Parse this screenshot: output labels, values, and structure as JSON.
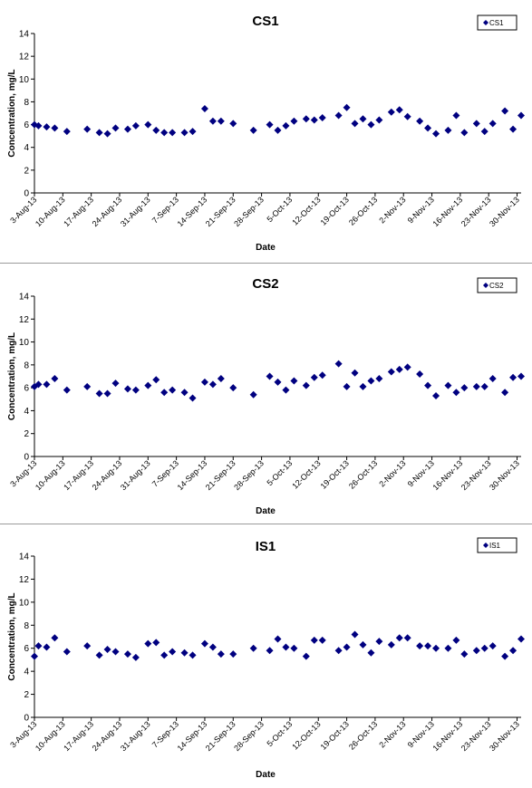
{
  "chart_data": [
    {
      "type": "scatter",
      "title": "CS1",
      "xlabel": "Date",
      "ylabel": "Concentration, mg/L",
      "ylim": [
        0,
        14
      ],
      "yticks": [
        "0",
        "2",
        "4",
        "6",
        "8",
        "10",
        "12",
        "14"
      ],
      "x_tick_labels": [
        "3-Aug-13",
        "10-Aug-13",
        "17-Aug-13",
        "24-Aug-13",
        "31-Aug-13",
        "7-Sep-13",
        "14-Sep-13",
        "21-Sep-13",
        "28-Sep-13",
        "5-Oct-13",
        "12-Oct-13",
        "19-Oct-13",
        "26-Oct-13",
        "2-Nov-13",
        "9-Nov-13",
        "16-Nov-13",
        "23-Nov-13",
        "30-Nov-13"
      ],
      "grid": false,
      "legend_position": "top-right",
      "marker_color": "#000080",
      "series": [
        {
          "name": "CS1",
          "points": [
            {
              "x": "2013-08-03",
              "y": 6.0
            },
            {
              "x": "2013-08-04",
              "y": 5.9
            },
            {
              "x": "2013-08-06",
              "y": 5.8
            },
            {
              "x": "2013-08-08",
              "y": 5.7
            },
            {
              "x": "2013-08-11",
              "y": 5.4
            },
            {
              "x": "2013-08-16",
              "y": 5.6
            },
            {
              "x": "2013-08-19",
              "y": 5.3
            },
            {
              "x": "2013-08-21",
              "y": 5.2
            },
            {
              "x": "2013-08-23",
              "y": 5.7
            },
            {
              "x": "2013-08-26",
              "y": 5.6
            },
            {
              "x": "2013-08-28",
              "y": 5.9
            },
            {
              "x": "2013-08-31",
              "y": 6.0
            },
            {
              "x": "2013-09-02",
              "y": 5.5
            },
            {
              "x": "2013-09-04",
              "y": 5.3
            },
            {
              "x": "2013-09-06",
              "y": 5.3
            },
            {
              "x": "2013-09-09",
              "y": 5.3
            },
            {
              "x": "2013-09-11",
              "y": 5.4
            },
            {
              "x": "2013-09-14",
              "y": 7.4
            },
            {
              "x": "2013-09-16",
              "y": 6.3
            },
            {
              "x": "2013-09-18",
              "y": 6.3
            },
            {
              "x": "2013-09-21",
              "y": 6.1
            },
            {
              "x": "2013-09-26",
              "y": 5.5
            },
            {
              "x": "2013-09-30",
              "y": 6.0
            },
            {
              "x": "2013-10-02",
              "y": 5.5
            },
            {
              "x": "2013-10-04",
              "y": 5.9
            },
            {
              "x": "2013-10-06",
              "y": 6.3
            },
            {
              "x": "2013-10-09",
              "y": 6.5
            },
            {
              "x": "2013-10-11",
              "y": 6.4
            },
            {
              "x": "2013-10-13",
              "y": 6.6
            },
            {
              "x": "2013-10-17",
              "y": 6.8
            },
            {
              "x": "2013-10-19",
              "y": 7.5
            },
            {
              "x": "2013-10-21",
              "y": 6.1
            },
            {
              "x": "2013-10-23",
              "y": 6.5
            },
            {
              "x": "2013-10-25",
              "y": 6.0
            },
            {
              "x": "2013-10-27",
              "y": 6.4
            },
            {
              "x": "2013-10-30",
              "y": 7.1
            },
            {
              "x": "2013-11-01",
              "y": 7.3
            },
            {
              "x": "2013-11-03",
              "y": 6.7
            },
            {
              "x": "2013-11-06",
              "y": 6.3
            },
            {
              "x": "2013-11-08",
              "y": 5.7
            },
            {
              "x": "2013-11-10",
              "y": 5.2
            },
            {
              "x": "2013-11-13",
              "y": 5.5
            },
            {
              "x": "2013-11-15",
              "y": 6.8
            },
            {
              "x": "2013-11-17",
              "y": 5.3
            },
            {
              "x": "2013-11-20",
              "y": 6.1
            },
            {
              "x": "2013-11-22",
              "y": 5.4
            },
            {
              "x": "2013-11-24",
              "y": 6.1
            },
            {
              "x": "2013-11-27",
              "y": 7.2
            },
            {
              "x": "2013-11-29",
              "y": 5.6
            },
            {
              "x": "2013-12-01",
              "y": 6.8
            }
          ]
        }
      ]
    },
    {
      "type": "scatter",
      "title": "CS2",
      "xlabel": "Date",
      "ylabel": "Concentration, mg/L",
      "ylim": [
        0,
        14
      ],
      "yticks": [
        "0",
        "2",
        "4",
        "6",
        "8",
        "10",
        "12",
        "14"
      ],
      "x_tick_labels": [
        "3-Aug-13",
        "10-Aug-13",
        "17-Aug-13",
        "24-Aug-13",
        "31-Aug-13",
        "7-Sep-13",
        "14-Sep-13",
        "21-Sep-13",
        "28-Sep-13",
        "5-Oct-13",
        "12-Oct-13",
        "19-Oct-13",
        "26-Oct-13",
        "2-Nov-13",
        "9-Nov-13",
        "16-Nov-13",
        "23-Nov-13",
        "30-Nov-13"
      ],
      "grid": false,
      "legend_position": "top-right",
      "marker_color": "#000080",
      "series": [
        {
          "name": "CS2",
          "points": [
            {
              "x": "2013-08-03",
              "y": 6.1
            },
            {
              "x": "2013-08-04",
              "y": 6.3
            },
            {
              "x": "2013-08-06",
              "y": 6.3
            },
            {
              "x": "2013-08-08",
              "y": 6.8
            },
            {
              "x": "2013-08-11",
              "y": 5.8
            },
            {
              "x": "2013-08-16",
              "y": 6.1
            },
            {
              "x": "2013-08-19",
              "y": 5.5
            },
            {
              "x": "2013-08-21",
              "y": 5.5
            },
            {
              "x": "2013-08-23",
              "y": 6.4
            },
            {
              "x": "2013-08-26",
              "y": 5.9
            },
            {
              "x": "2013-08-28",
              "y": 5.8
            },
            {
              "x": "2013-08-31",
              "y": 6.2
            },
            {
              "x": "2013-09-02",
              "y": 6.7
            },
            {
              "x": "2013-09-04",
              "y": 5.6
            },
            {
              "x": "2013-09-06",
              "y": 5.8
            },
            {
              "x": "2013-09-09",
              "y": 5.6
            },
            {
              "x": "2013-09-11",
              "y": 5.1
            },
            {
              "x": "2013-09-14",
              "y": 6.5
            },
            {
              "x": "2013-09-16",
              "y": 6.3
            },
            {
              "x": "2013-09-18",
              "y": 6.8
            },
            {
              "x": "2013-09-21",
              "y": 6.0
            },
            {
              "x": "2013-09-26",
              "y": 5.4
            },
            {
              "x": "2013-09-30",
              "y": 7.0
            },
            {
              "x": "2013-10-02",
              "y": 6.5
            },
            {
              "x": "2013-10-04",
              "y": 5.8
            },
            {
              "x": "2013-10-06",
              "y": 6.6
            },
            {
              "x": "2013-10-09",
              "y": 6.2
            },
            {
              "x": "2013-10-11",
              "y": 6.9
            },
            {
              "x": "2013-10-13",
              "y": 7.1
            },
            {
              "x": "2013-10-17",
              "y": 8.1
            },
            {
              "x": "2013-10-19",
              "y": 6.1
            },
            {
              "x": "2013-10-21",
              "y": 7.3
            },
            {
              "x": "2013-10-23",
              "y": 6.1
            },
            {
              "x": "2013-10-25",
              "y": 6.6
            },
            {
              "x": "2013-10-27",
              "y": 6.8
            },
            {
              "x": "2013-10-30",
              "y": 7.4
            },
            {
              "x": "2013-11-01",
              "y": 7.6
            },
            {
              "x": "2013-11-03",
              "y": 7.8
            },
            {
              "x": "2013-11-06",
              "y": 7.2
            },
            {
              "x": "2013-11-08",
              "y": 6.2
            },
            {
              "x": "2013-11-10",
              "y": 5.3
            },
            {
              "x": "2013-11-13",
              "y": 6.2
            },
            {
              "x": "2013-11-15",
              "y": 5.6
            },
            {
              "x": "2013-11-17",
              "y": 6.0
            },
            {
              "x": "2013-11-20",
              "y": 6.1
            },
            {
              "x": "2013-11-22",
              "y": 6.1
            },
            {
              "x": "2013-11-24",
              "y": 6.8
            },
            {
              "x": "2013-11-27",
              "y": 5.6
            },
            {
              "x": "2013-11-29",
              "y": 6.9
            },
            {
              "x": "2013-12-01",
              "y": 7.0
            }
          ]
        }
      ]
    },
    {
      "type": "scatter",
      "title": "IS1",
      "xlabel": "Date",
      "ylabel": "Concentration, mg/L",
      "ylim": [
        0,
        14
      ],
      "yticks": [
        "0",
        "2",
        "4",
        "6",
        "8",
        "10",
        "12",
        "14"
      ],
      "x_tick_labels": [
        "3-Aug-13",
        "10-Aug-13",
        "17-Aug-13",
        "24-Aug-13",
        "31-Aug-13",
        "7-Sep-13",
        "14-Sep-13",
        "21-Sep-13",
        "28-Sep-13",
        "5-Oct-13",
        "12-Oct-13",
        "19-Oct-13",
        "26-Oct-13",
        "2-Nov-13",
        "9-Nov-13",
        "16-Nov-13",
        "23-Nov-13",
        "30-Nov-13"
      ],
      "grid": false,
      "legend_position": "top-right",
      "marker_color": "#000080",
      "series": [
        {
          "name": "IS1",
          "points": [
            {
              "x": "2013-08-03",
              "y": 5.3
            },
            {
              "x": "2013-08-04",
              "y": 6.2
            },
            {
              "x": "2013-08-06",
              "y": 6.1
            },
            {
              "x": "2013-08-08",
              "y": 6.9
            },
            {
              "x": "2013-08-11",
              "y": 5.7
            },
            {
              "x": "2013-08-16",
              "y": 6.2
            },
            {
              "x": "2013-08-19",
              "y": 5.4
            },
            {
              "x": "2013-08-21",
              "y": 5.9
            },
            {
              "x": "2013-08-23",
              "y": 5.7
            },
            {
              "x": "2013-08-26",
              "y": 5.5
            },
            {
              "x": "2013-08-28",
              "y": 5.2
            },
            {
              "x": "2013-08-31",
              "y": 6.4
            },
            {
              "x": "2013-09-02",
              "y": 6.5
            },
            {
              "x": "2013-09-04",
              "y": 5.4
            },
            {
              "x": "2013-09-06",
              "y": 5.7
            },
            {
              "x": "2013-09-09",
              "y": 5.6
            },
            {
              "x": "2013-09-11",
              "y": 5.4
            },
            {
              "x": "2013-09-14",
              "y": 6.4
            },
            {
              "x": "2013-09-16",
              "y": 6.1
            },
            {
              "x": "2013-09-18",
              "y": 5.5
            },
            {
              "x": "2013-09-21",
              "y": 5.5
            },
            {
              "x": "2013-09-26",
              "y": 6.0
            },
            {
              "x": "2013-09-30",
              "y": 5.8
            },
            {
              "x": "2013-10-02",
              "y": 6.8
            },
            {
              "x": "2013-10-04",
              "y": 6.1
            },
            {
              "x": "2013-10-06",
              "y": 6.0
            },
            {
              "x": "2013-10-09",
              "y": 5.3
            },
            {
              "x": "2013-10-11",
              "y": 6.7
            },
            {
              "x": "2013-10-13",
              "y": 6.7
            },
            {
              "x": "2013-10-17",
              "y": 5.8
            },
            {
              "x": "2013-10-19",
              "y": 6.1
            },
            {
              "x": "2013-10-21",
              "y": 7.2
            },
            {
              "x": "2013-10-23",
              "y": 6.3
            },
            {
              "x": "2013-10-25",
              "y": 5.6
            },
            {
              "x": "2013-10-27",
              "y": 6.6
            },
            {
              "x": "2013-10-30",
              "y": 6.3
            },
            {
              "x": "2013-11-01",
              "y": 6.9
            },
            {
              "x": "2013-11-03",
              "y": 6.9
            },
            {
              "x": "2013-11-06",
              "y": 6.2
            },
            {
              "x": "2013-11-08",
              "y": 6.2
            },
            {
              "x": "2013-11-10",
              "y": 6.0
            },
            {
              "x": "2013-11-13",
              "y": 6.0
            },
            {
              "x": "2013-11-15",
              "y": 6.7
            },
            {
              "x": "2013-11-17",
              "y": 5.5
            },
            {
              "x": "2013-11-20",
              "y": 5.8
            },
            {
              "x": "2013-11-22",
              "y": 6.0
            },
            {
              "x": "2013-11-24",
              "y": 6.2
            },
            {
              "x": "2013-11-27",
              "y": 5.3
            },
            {
              "x": "2013-11-29",
              "y": 5.8
            },
            {
              "x": "2013-12-01",
              "y": 6.8
            }
          ]
        }
      ]
    }
  ]
}
